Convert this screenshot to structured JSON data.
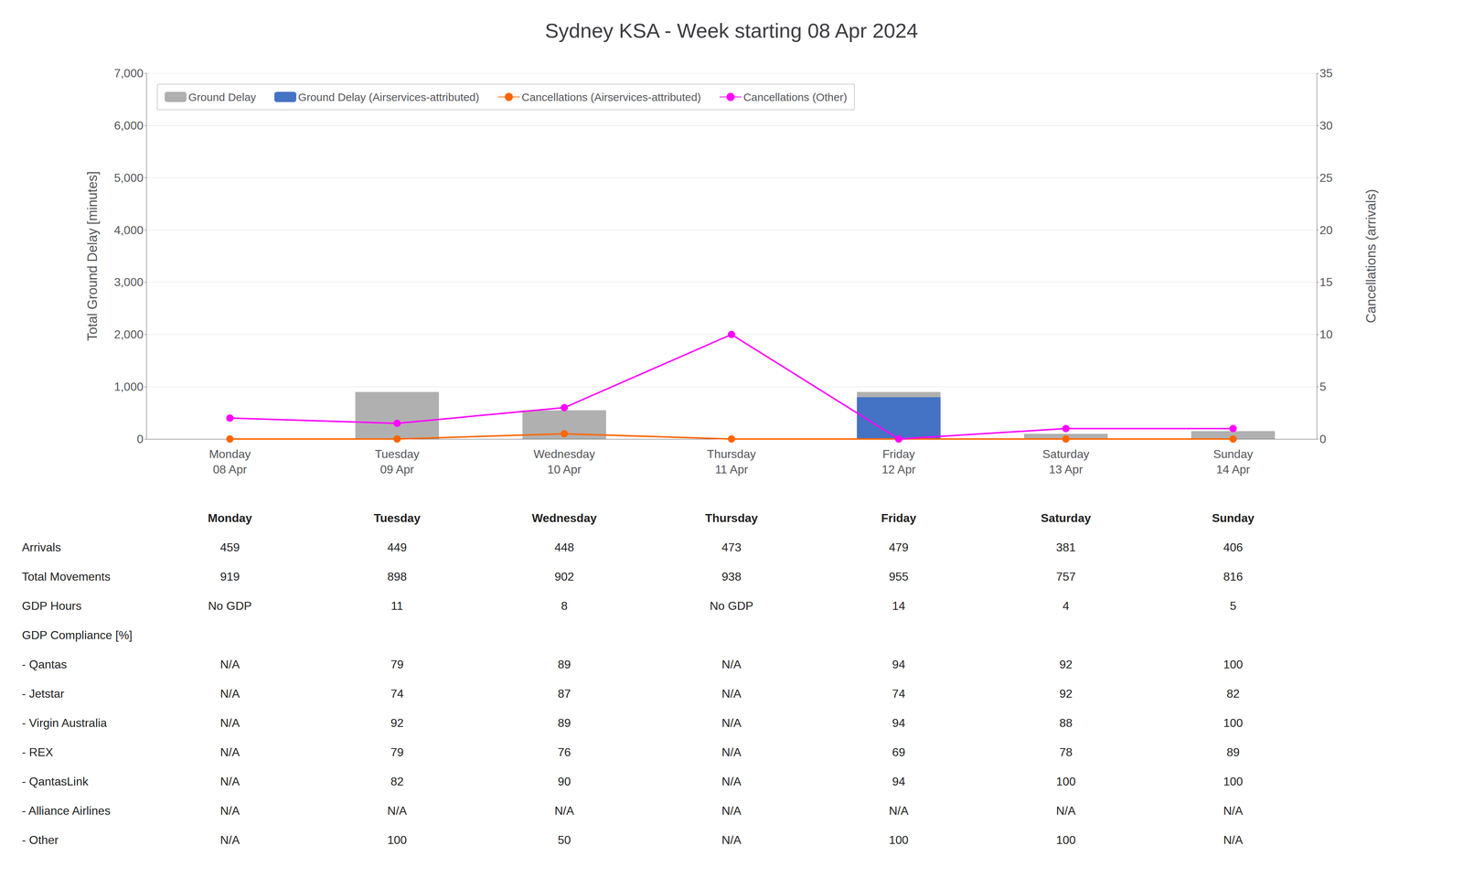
{
  "chart_data": {
    "type": "bar",
    "title": "Sydney KSA - Week starting 08 Apr 2024",
    "categories": [
      "Monday\n08 Apr",
      "Tuesday\n09 Apr",
      "Wednesday\n10 Apr",
      "Thursday\n11 Apr",
      "Friday\n12 Apr",
      "Saturday\n13 Apr",
      "Sunday\n14 Apr"
    ],
    "series": [
      {
        "name": "Ground Delay",
        "type": "bar",
        "color": "#b0b0b0",
        "values": [
          0,
          900,
          550,
          0,
          900,
          100,
          150
        ]
      },
      {
        "name": "Ground Delay (Airservices-attributed)",
        "type": "bar",
        "color": "#4472c4",
        "values": [
          0,
          0,
          0,
          0,
          800,
          0,
          0
        ]
      },
      {
        "name": "Cancellations (Airservices-attributed)",
        "type": "line",
        "color": "#ff6600",
        "marker": "circle",
        "axis": "y2",
        "values": [
          0,
          0,
          0.5,
          0,
          0,
          0,
          0
        ]
      },
      {
        "name": "Cancellations (Other)",
        "type": "line",
        "color": "#ff00ff",
        "marker": "circle",
        "axis": "y2",
        "values": [
          2,
          1.5,
          3,
          10,
          0,
          1,
          1
        ]
      }
    ],
    "ylabel": "Total Ground Delay [minutes]",
    "y2label": "Cancellations (arrivals)",
    "ylim": [
      0,
      7000
    ],
    "yticks": [
      0,
      1000,
      2000,
      3000,
      4000,
      5000,
      6000,
      7000
    ],
    "y2lim": [
      0,
      35
    ],
    "y2ticks": [
      0,
      5,
      10,
      15,
      20,
      25,
      30,
      35
    ],
    "grid": true,
    "legend": "upper left",
    "table": {
      "columns": [
        "Monday",
        "Tuesday",
        "Wednesday",
        "Thursday",
        "Friday",
        "Saturday",
        "Sunday"
      ],
      "rows": [
        {
          "label": "Arrivals",
          "values": [
            "459",
            "449",
            "448",
            "473",
            "479",
            "381",
            "406"
          ]
        },
        {
          "label": "Total Movements",
          "values": [
            "919",
            "898",
            "902",
            "938",
            "955",
            "757",
            "816"
          ]
        },
        {
          "label": "GDP Hours",
          "values": [
            "No GDP",
            "11",
            "8",
            "No GDP",
            "14",
            "4",
            "5"
          ]
        },
        {
          "label": "GDP Compliance [%]",
          "values": [
            null,
            null,
            null,
            null,
            null,
            null,
            null
          ]
        },
        {
          "label": "- Qantas",
          "values": [
            "N/A",
            "79",
            "89",
            "N/A",
            "94",
            "92",
            "100"
          ]
        },
        {
          "label": "- Jetstar",
          "values": [
            "N/A",
            "74",
            "87",
            "N/A",
            "74",
            "92",
            "82"
          ]
        },
        {
          "label": "- Virgin Australia",
          "values": [
            "N/A",
            "92",
            "89",
            "N/A",
            "94",
            "88",
            "100"
          ]
        },
        {
          "label": "- REX",
          "values": [
            "N/A",
            "79",
            "76",
            "N/A",
            "69",
            "78",
            "89"
          ]
        },
        {
          "label": "- QantasLink",
          "values": [
            "N/A",
            "82",
            "90",
            "N/A",
            "94",
            "100",
            "100"
          ]
        },
        {
          "label": "- Alliance Airlines",
          "values": [
            "N/A",
            "N/A",
            "N/A",
            "N/A",
            "N/A",
            "N/A",
            "N/A"
          ]
        },
        {
          "label": "- Other",
          "values": [
            "N/A",
            "100",
            "50",
            "N/A",
            "100",
            "100",
            "N/A"
          ]
        }
      ]
    }
  }
}
